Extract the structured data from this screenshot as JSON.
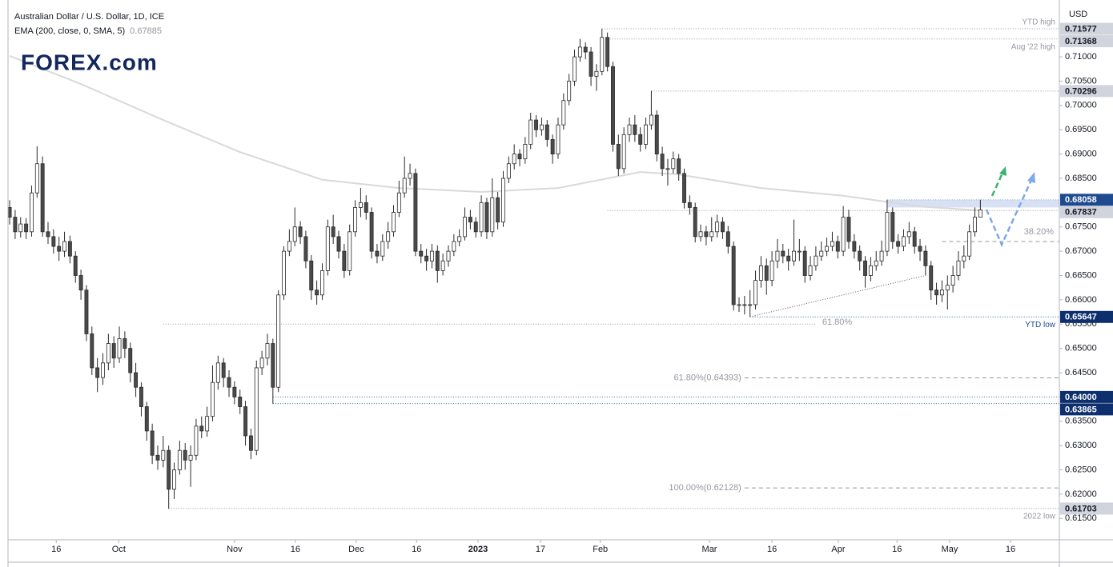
{
  "chart_data": {
    "type": "candlestick",
    "title": "Australian Dollar / U.S. Dollar, 1D, ICE",
    "indicator": "EMA (200, close, 0, SMA, 5)",
    "indicator_value": "0.67885",
    "currency": "USD",
    "logo": "FOREX.com",
    "up_color": "#ffffff",
    "down_color": "#4a4a4a",
    "wick_color": "#2a2a2a",
    "xlim": [
      -0.3,
      191.4
    ],
    "ylim": [
      0.6106,
      0.7217
    ],
    "yticks": [
      {
        "value": 0.71,
        "label": "0.71000"
      },
      {
        "value": 0.705,
        "label": "0.70500"
      },
      {
        "value": 0.7,
        "label": "0.70000"
      },
      {
        "value": 0.695,
        "label": "0.69500"
      },
      {
        "value": 0.69,
        "label": "0.69000"
      },
      {
        "value": 0.685,
        "label": "0.68500"
      },
      {
        "value": 0.675,
        "label": "0.67500"
      },
      {
        "value": 0.67,
        "label": "0.67000"
      },
      {
        "value": 0.665,
        "label": "0.66500"
      },
      {
        "value": 0.66,
        "label": "0.66000"
      },
      {
        "value": 0.655,
        "label": "0.65500"
      },
      {
        "value": 0.65,
        "label": "0.65000"
      },
      {
        "value": 0.645,
        "label": "0.64500"
      },
      {
        "value": 0.635,
        "label": "0.63500"
      },
      {
        "value": 0.63,
        "label": "0.63000"
      },
      {
        "value": 0.625,
        "label": "0.62500"
      },
      {
        "value": 0.62,
        "label": "0.62000"
      },
      {
        "value": 0.615,
        "label": "0.61500"
      }
    ],
    "xticks": [
      {
        "value": 8.5,
        "label": "16"
      },
      {
        "value": 19.9,
        "label": "Oct"
      },
      {
        "value": 41,
        "label": "Nov"
      },
      {
        "value": 52.1,
        "label": "16"
      },
      {
        "value": 63.2,
        "label": "Dec"
      },
      {
        "value": 74.2,
        "label": "16"
      },
      {
        "value": 85.4,
        "label": "2023"
      },
      {
        "value": 96.8,
        "label": "17"
      },
      {
        "value": 107.7,
        "label": "Feb"
      },
      {
        "value": 127.6,
        "label": "Mar"
      },
      {
        "value": 139,
        "label": "16"
      },
      {
        "value": 151.1,
        "label": "Apr"
      },
      {
        "value": 161.8,
        "label": "16"
      },
      {
        "value": 171.4,
        "label": "May"
      },
      {
        "value": 182.5,
        "label": "16"
      }
    ],
    "ohlc": [
      [
        0.679,
        0.6805,
        0.6755,
        0.677
      ],
      [
        0.677,
        0.6785,
        0.6725,
        0.674
      ],
      [
        0.674,
        0.677,
        0.6728,
        0.6756
      ],
      [
        0.6756,
        0.6768,
        0.6725,
        0.674
      ],
      [
        0.674,
        0.6835,
        0.673,
        0.682
      ],
      [
        0.682,
        0.6916,
        0.681,
        0.688
      ],
      [
        0.688,
        0.6895,
        0.673,
        0.674
      ],
      [
        0.674,
        0.676,
        0.6715,
        0.673
      ],
      [
        0.673,
        0.6745,
        0.6695,
        0.671
      ],
      [
        0.671,
        0.673,
        0.668,
        0.67
      ],
      [
        0.67,
        0.674,
        0.6688,
        0.672
      ],
      [
        0.672,
        0.6732,
        0.6675,
        0.669
      ],
      [
        0.669,
        0.67,
        0.6635,
        0.665
      ],
      [
        0.665,
        0.6662,
        0.66,
        0.662
      ],
      [
        0.662,
        0.663,
        0.6515,
        0.653
      ],
      [
        0.653,
        0.6545,
        0.6445,
        0.646
      ],
      [
        0.646,
        0.648,
        0.641,
        0.644
      ],
      [
        0.644,
        0.649,
        0.6425,
        0.647
      ],
      [
        0.647,
        0.653,
        0.6455,
        0.651
      ],
      [
        0.651,
        0.6525,
        0.646,
        0.648
      ],
      [
        0.648,
        0.6545,
        0.647,
        0.652
      ],
      [
        0.652,
        0.6535,
        0.648,
        0.65
      ],
      [
        0.65,
        0.6512,
        0.643,
        0.645
      ],
      [
        0.645,
        0.647,
        0.64,
        0.642
      ],
      [
        0.642,
        0.643,
        0.636,
        0.638
      ],
      [
        0.638,
        0.639,
        0.631,
        0.633
      ],
      [
        0.633,
        0.6345,
        0.6262,
        0.628
      ],
      [
        0.628,
        0.63,
        0.625,
        0.627
      ],
      [
        0.627,
        0.632,
        0.6255,
        0.629
      ],
      [
        0.629,
        0.63,
        0.617,
        0.621
      ],
      [
        0.621,
        0.6265,
        0.619,
        0.625
      ],
      [
        0.625,
        0.631,
        0.624,
        0.629
      ],
      [
        0.629,
        0.6305,
        0.625,
        0.627
      ],
      [
        0.627,
        0.63,
        0.6215,
        0.628
      ],
      [
        0.628,
        0.6355,
        0.627,
        0.634
      ],
      [
        0.634,
        0.636,
        0.6315,
        0.633
      ],
      [
        0.633,
        0.638,
        0.6318,
        0.636
      ],
      [
        0.636,
        0.6465,
        0.635,
        0.643
      ],
      [
        0.643,
        0.6485,
        0.6415,
        0.647
      ],
      [
        0.647,
        0.648,
        0.642,
        0.644
      ],
      [
        0.644,
        0.6455,
        0.64,
        0.642
      ],
      [
        0.642,
        0.6432,
        0.6385,
        0.64
      ],
      [
        0.64,
        0.6415,
        0.6365,
        0.638
      ],
      [
        0.638,
        0.6392,
        0.63,
        0.632
      ],
      [
        0.632,
        0.6335,
        0.6272,
        0.629
      ],
      [
        0.629,
        0.6475,
        0.628,
        0.646
      ],
      [
        0.646,
        0.6495,
        0.6445,
        0.648
      ],
      [
        0.648,
        0.653,
        0.6465,
        0.651
      ],
      [
        0.651,
        0.652,
        0.6386,
        0.642
      ],
      [
        0.642,
        0.662,
        0.641,
        0.661
      ],
      [
        0.661,
        0.671,
        0.66,
        0.67
      ],
      [
        0.67,
        0.6745,
        0.669,
        0.672
      ],
      [
        0.672,
        0.679,
        0.671,
        0.675
      ],
      [
        0.675,
        0.6762,
        0.6715,
        0.673
      ],
      [
        0.673,
        0.6742,
        0.6665,
        0.668
      ],
      [
        0.668,
        0.6692,
        0.66,
        0.662
      ],
      [
        0.662,
        0.664,
        0.659,
        0.661
      ],
      [
        0.661,
        0.6675,
        0.66,
        0.666
      ],
      [
        0.666,
        0.6765,
        0.665,
        0.675
      ],
      [
        0.675,
        0.6775,
        0.6715,
        0.673
      ],
      [
        0.673,
        0.6742,
        0.6685,
        0.67
      ],
      [
        0.67,
        0.6715,
        0.6645,
        0.666
      ],
      [
        0.666,
        0.6755,
        0.665,
        0.674
      ],
      [
        0.674,
        0.6805,
        0.673,
        0.679
      ],
      [
        0.679,
        0.683,
        0.677,
        0.68
      ],
      [
        0.68,
        0.6815,
        0.6765,
        0.678
      ],
      [
        0.678,
        0.679,
        0.6685,
        0.67
      ],
      [
        0.67,
        0.6715,
        0.6675,
        0.669
      ],
      [
        0.669,
        0.6735,
        0.668,
        0.672
      ],
      [
        0.672,
        0.676,
        0.6705,
        0.674
      ],
      [
        0.674,
        0.6795,
        0.673,
        0.678
      ],
      [
        0.678,
        0.6845,
        0.677,
        0.682
      ],
      [
        0.682,
        0.6895,
        0.681,
        0.685
      ],
      [
        0.685,
        0.688,
        0.6835,
        0.686
      ],
      [
        0.686,
        0.687,
        0.669,
        0.67
      ],
      [
        0.67,
        0.6715,
        0.6675,
        0.669
      ],
      [
        0.669,
        0.6705,
        0.666,
        0.668
      ],
      [
        0.668,
        0.6715,
        0.6665,
        0.67
      ],
      [
        0.67,
        0.6712,
        0.6635,
        0.666
      ],
      [
        0.666,
        0.6695,
        0.665,
        0.668
      ],
      [
        0.668,
        0.6712,
        0.6668,
        0.67
      ],
      [
        0.67,
        0.6735,
        0.669,
        0.672
      ],
      [
        0.672,
        0.6745,
        0.671,
        0.673
      ],
      [
        0.673,
        0.679,
        0.6722,
        0.677
      ],
      [
        0.677,
        0.6785,
        0.6745,
        0.676
      ],
      [
        0.676,
        0.677,
        0.6728,
        0.674
      ],
      [
        0.674,
        0.6815,
        0.673,
        0.68
      ],
      [
        0.68,
        0.681,
        0.6725,
        0.674
      ],
      [
        0.674,
        0.685,
        0.673,
        0.681
      ],
      [
        0.681,
        0.6822,
        0.6745,
        0.676
      ],
      [
        0.676,
        0.6865,
        0.675,
        0.685
      ],
      [
        0.685,
        0.6895,
        0.684,
        0.688
      ],
      [
        0.688,
        0.692,
        0.6868,
        0.69
      ],
      [
        0.69,
        0.691,
        0.6875,
        0.689
      ],
      [
        0.689,
        0.6935,
        0.688,
        0.692
      ],
      [
        0.692,
        0.6985,
        0.691,
        0.697
      ],
      [
        0.697,
        0.698,
        0.6935,
        0.695
      ],
      [
        0.695,
        0.6975,
        0.6938,
        0.696
      ],
      [
        0.696,
        0.697,
        0.6915,
        0.693
      ],
      [
        0.693,
        0.694,
        0.688,
        0.69
      ],
      [
        0.69,
        0.6975,
        0.689,
        0.696
      ],
      [
        0.696,
        0.7025,
        0.695,
        0.701
      ],
      [
        0.701,
        0.7065,
        0.7,
        0.705
      ],
      [
        0.705,
        0.7115,
        0.704,
        0.71
      ],
      [
        0.71,
        0.7137,
        0.709,
        0.712
      ],
      [
        0.712,
        0.713,
        0.7095,
        0.711
      ],
      [
        0.711,
        0.712,
        0.704,
        0.706
      ],
      [
        0.706,
        0.7085,
        0.703,
        0.707
      ],
      [
        0.707,
        0.7158,
        0.7062,
        0.714
      ],
      [
        0.714,
        0.715,
        0.707,
        0.708
      ],
      [
        0.708,
        0.709,
        0.6905,
        0.692
      ],
      [
        0.692,
        0.694,
        0.6855,
        0.687
      ],
      [
        0.687,
        0.6955,
        0.686,
        0.694
      ],
      [
        0.694,
        0.6975,
        0.6925,
        0.696
      ],
      [
        0.696,
        0.698,
        0.6925,
        0.694
      ],
      [
        0.694,
        0.6955,
        0.6905,
        0.692
      ],
      [
        0.692,
        0.6975,
        0.691,
        0.696
      ],
      [
        0.696,
        0.703,
        0.695,
        0.698
      ],
      [
        0.698,
        0.699,
        0.6885,
        0.69
      ],
      [
        0.69,
        0.6915,
        0.6855,
        0.687
      ],
      [
        0.687,
        0.689,
        0.6835,
        0.687
      ],
      [
        0.687,
        0.6905,
        0.686,
        0.689
      ],
      [
        0.689,
        0.69,
        0.6845,
        0.686
      ],
      [
        0.686,
        0.687,
        0.6788,
        0.68
      ],
      [
        0.68,
        0.6815,
        0.6775,
        0.679
      ],
      [
        0.679,
        0.68,
        0.6718,
        0.673
      ],
      [
        0.673,
        0.6755,
        0.672,
        0.674
      ],
      [
        0.674,
        0.6752,
        0.6712,
        0.673
      ],
      [
        0.673,
        0.677,
        0.672,
        0.674
      ],
      [
        0.674,
        0.6775,
        0.6728,
        0.676
      ],
      [
        0.676,
        0.677,
        0.6725,
        0.674
      ],
      [
        0.674,
        0.6752,
        0.6695,
        0.671
      ],
      [
        0.671,
        0.672,
        0.6578,
        0.659
      ],
      [
        0.659,
        0.6605,
        0.6575,
        0.659
      ],
      [
        0.659,
        0.6608,
        0.657,
        0.659
      ],
      [
        0.659,
        0.662,
        0.6565,
        0.659
      ],
      [
        0.659,
        0.666,
        0.658,
        0.664
      ],
      [
        0.664,
        0.669,
        0.6625,
        0.667
      ],
      [
        0.667,
        0.6685,
        0.661,
        0.664
      ],
      [
        0.664,
        0.67,
        0.6628,
        0.668
      ],
      [
        0.668,
        0.6725,
        0.6665,
        0.67
      ],
      [
        0.67,
        0.6715,
        0.6675,
        0.669
      ],
      [
        0.669,
        0.6705,
        0.666,
        0.668
      ],
      [
        0.668,
        0.6765,
        0.667,
        0.67
      ],
      [
        0.67,
        0.6725,
        0.668,
        0.67
      ],
      [
        0.67,
        0.671,
        0.6635,
        0.665
      ],
      [
        0.665,
        0.669,
        0.664,
        0.667
      ],
      [
        0.667,
        0.671,
        0.666,
        0.669
      ],
      [
        0.669,
        0.672,
        0.668,
        0.67
      ],
      [
        0.67,
        0.6728,
        0.669,
        0.671
      ],
      [
        0.671,
        0.674,
        0.67,
        0.672
      ],
      [
        0.672,
        0.6732,
        0.6685,
        0.67
      ],
      [
        0.67,
        0.6793,
        0.669,
        0.677
      ],
      [
        0.677,
        0.6785,
        0.6705,
        0.672
      ],
      [
        0.672,
        0.6735,
        0.6685,
        0.67
      ],
      [
        0.67,
        0.6712,
        0.666,
        0.668
      ],
      [
        0.668,
        0.669,
        0.6625,
        0.665
      ],
      [
        0.665,
        0.6688,
        0.6638,
        0.667
      ],
      [
        0.667,
        0.67,
        0.666,
        0.668
      ],
      [
        0.668,
        0.6722,
        0.667,
        0.67
      ],
      [
        0.67,
        0.6806,
        0.669,
        0.678
      ],
      [
        0.678,
        0.679,
        0.6705,
        0.672
      ],
      [
        0.672,
        0.6735,
        0.6695,
        0.671
      ],
      [
        0.671,
        0.6745,
        0.67,
        0.673
      ],
      [
        0.673,
        0.676,
        0.6715,
        0.674
      ],
      [
        0.674,
        0.675,
        0.6695,
        0.671
      ],
      [
        0.671,
        0.6725,
        0.668,
        0.67
      ],
      [
        0.67,
        0.6712,
        0.665,
        0.667
      ],
      [
        0.667,
        0.668,
        0.66,
        0.662
      ],
      [
        0.662,
        0.6635,
        0.659,
        0.661
      ],
      [
        0.661,
        0.664,
        0.6595,
        0.662
      ],
      [
        0.662,
        0.665,
        0.658,
        0.663
      ],
      [
        0.663,
        0.667,
        0.6615,
        0.665
      ],
      [
        0.665,
        0.67,
        0.664,
        0.668
      ],
      [
        0.668,
        0.6712,
        0.6665,
        0.669
      ],
      [
        0.669,
        0.6755,
        0.6682,
        0.674
      ],
      [
        0.674,
        0.679,
        0.673,
        0.677
      ],
      [
        0.677,
        0.6806,
        0.677,
        0.6785
      ]
    ],
    "ema": {
      "color": "#d9d9d9",
      "x": [
        0,
        13,
        28,
        42,
        57,
        71,
        86,
        100,
        115,
        122,
        137,
        152,
        166,
        177
      ],
      "values": [
        0.7102,
        0.7044,
        0.697,
        0.6904,
        0.6847,
        0.683,
        0.6822,
        0.683,
        0.6863,
        0.6858,
        0.683,
        0.6814,
        0.6792,
        0.6784
      ]
    },
    "levels": [
      {
        "value": 0.71577,
        "label": "0.71577",
        "note": "YTD high",
        "from": 108,
        "box": "#d1d4dc",
        "color": "#9598a1"
      },
      {
        "value": 0.71368,
        "label": "0.71368",
        "note": "Aug '22 high",
        "from": 109,
        "box": "#d1d4dc",
        "color": "#9598a1"
      },
      {
        "value": 0.70296,
        "label": "0.70296",
        "from": 117,
        "box": "#d1d4dc",
        "color": "#9598a1"
      },
      {
        "value": 0.68058,
        "label": "0.68058",
        "from": 160,
        "box": "#1e4b8f",
        "color": "#90a8d0"
      },
      {
        "value": 0.67837,
        "label": "0.67837",
        "from": 109,
        "box": "#d1d4dc",
        "color": "#9598a1"
      },
      {
        "value": 0.65647,
        "label": "0.65647",
        "note": "YTD low",
        "from": 135,
        "box": "#0d2f6e",
        "color": "#3a5da0"
      },
      {
        "value": 0.64,
        "label": "0.64000",
        "from": 48,
        "box": "#0d2f6e",
        "color": "#3a5da0"
      },
      {
        "value": 0.63865,
        "label": "0.63865",
        "from": 48,
        "box": "#0d2f6e",
        "color": "#3a5da0"
      },
      {
        "value": 0.61703,
        "label": "0.61703",
        "note": "2022 low",
        "from": 29,
        "box": "#d1d4dc",
        "color": "#9598a1"
      }
    ],
    "fibs": [
      {
        "value": 0.64393,
        "label": "61.80%(0.64393)",
        "from": 134
      },
      {
        "value": 0.62128,
        "label": "100.00%(0.62128)",
        "from": 134
      },
      {
        "value": 0.672,
        "label": "38.20%",
        "from": 170
      },
      {
        "value": 0.655,
        "label": "61.80%",
        "from": 28,
        "to": 147
      }
    ],
    "zone": {
      "from": 160,
      "top": 0.6806,
      "bottom": 0.679,
      "color": "#b7c9ea"
    },
    "trendline": {
      "x": [
        135,
        167
      ],
      "values": [
        0.6565,
        0.665
      ]
    }
  }
}
